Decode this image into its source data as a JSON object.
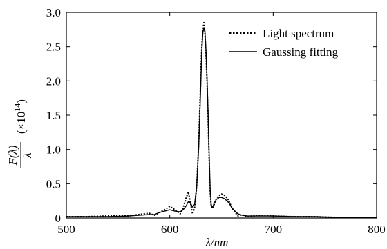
{
  "chart_data": {
    "type": "line",
    "xlabel": "λ/nm",
    "ylabel": {
      "numerator": "F(λ)",
      "denominator": "λ",
      "scale_prefix": "(×10",
      "scale_exponent": "14",
      "scale_suffix": ")"
    },
    "xlim": [
      500,
      800
    ],
    "ylim": [
      0,
      3.0
    ],
    "xticks": [
      500,
      600,
      700,
      800
    ],
    "xtick_labels": [
      "500",
      "600",
      "700",
      "800"
    ],
    "yticks": [
      0,
      0.5,
      1.0,
      1.5,
      2.0,
      2.5,
      3.0
    ],
    "ytick_labels": [
      "0",
      "0.5",
      "1.0",
      "1.5",
      "2.0",
      "2.5",
      "3.0"
    ],
    "grid": false,
    "legend_position": "top-right",
    "series": [
      {
        "name": "Light spectrum",
        "style": "dotted",
        "color": "#000000",
        "x": [
          500,
          520,
          540,
          560,
          570,
          580,
          585,
          590,
          595,
          600,
          605,
          610,
          613,
          616,
          618,
          620,
          622,
          624,
          626,
          628,
          630,
          631,
          632,
          633,
          634,
          635,
          636,
          637,
          638,
          639,
          640,
          641,
          642,
          643,
          645,
          648,
          650,
          653,
          656,
          658,
          660,
          663,
          666,
          670,
          675,
          680,
          690,
          700,
          720,
          740,
          760,
          780,
          800
        ],
        "y": [
          0.02,
          0.02,
          0.03,
          0.03,
          0.05,
          0.07,
          0.04,
          0.08,
          0.12,
          0.17,
          0.12,
          0.06,
          0.15,
          0.3,
          0.38,
          0.22,
          0.06,
          0.15,
          0.45,
          1.1,
          2.1,
          2.5,
          2.75,
          2.85,
          2.7,
          2.4,
          2.0,
          1.5,
          0.9,
          0.4,
          0.18,
          0.14,
          0.16,
          0.2,
          0.28,
          0.33,
          0.35,
          0.33,
          0.28,
          0.22,
          0.15,
          0.08,
          0.03,
          0.05,
          0.02,
          0.03,
          0.04,
          0.03,
          0.02,
          0.02,
          0.01,
          0.01,
          0.01
        ]
      },
      {
        "name": "Gaussing fitting",
        "style": "solid",
        "color": "#000000",
        "x": [
          500,
          520,
          540,
          560,
          570,
          580,
          585,
          590,
          595,
          600,
          605,
          610,
          613,
          616,
          618,
          620,
          622,
          624,
          626,
          628,
          630,
          631,
          632,
          633,
          634,
          635,
          636,
          637,
          638,
          639,
          640,
          641,
          642,
          643,
          645,
          648,
          650,
          653,
          656,
          658,
          660,
          663,
          666,
          670,
          675,
          680,
          690,
          700,
          720,
          740,
          760,
          780,
          800
        ],
        "y": [
          0.02,
          0.02,
          0.02,
          0.03,
          0.04,
          0.05,
          0.05,
          0.08,
          0.1,
          0.12,
          0.1,
          0.09,
          0.12,
          0.18,
          0.24,
          0.22,
          0.16,
          0.2,
          0.45,
          1.05,
          1.95,
          2.45,
          2.7,
          2.78,
          2.72,
          2.45,
          2.05,
          1.55,
          0.95,
          0.45,
          0.2,
          0.16,
          0.18,
          0.22,
          0.27,
          0.3,
          0.3,
          0.28,
          0.24,
          0.2,
          0.15,
          0.1,
          0.06,
          0.04,
          0.03,
          0.03,
          0.03,
          0.03,
          0.02,
          0.02,
          0.01,
          0.01,
          0.01
        ]
      }
    ]
  }
}
